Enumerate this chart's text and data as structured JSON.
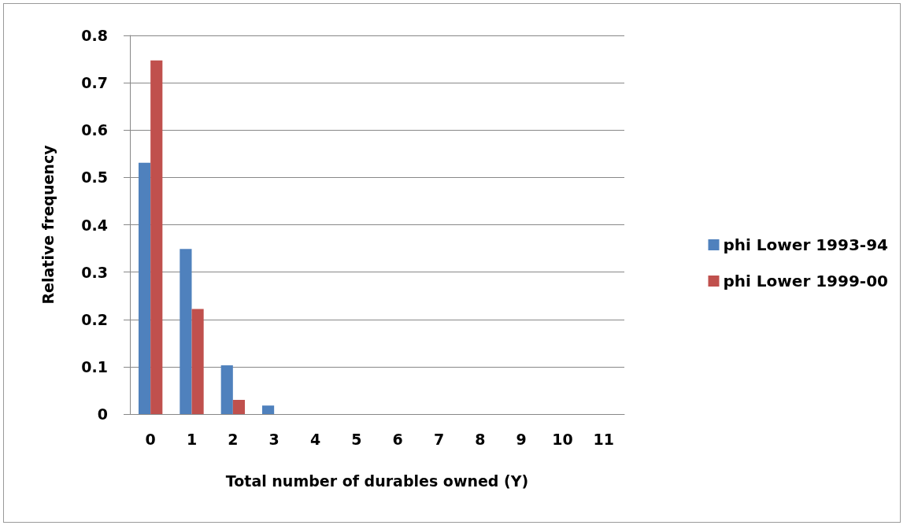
{
  "chart_data": {
    "type": "bar",
    "xlabel": "Total number of durables owned (Y)",
    "ylabel": "Relative frequency",
    "categories": [
      "0",
      "1",
      "2",
      "3",
      "4",
      "5",
      "6",
      "7",
      "8",
      "9",
      "10",
      "11"
    ],
    "series": [
      {
        "name": "phi Lower 1993-94",
        "color": "#4f81bd",
        "values": [
          0.531,
          0.349,
          0.103,
          0.018,
          0,
          0,
          0,
          0,
          0,
          0,
          0,
          0
        ]
      },
      {
        "name": "phi Lower 1999-00",
        "color": "#c0504d",
        "values": [
          0.747,
          0.222,
          0.03,
          0,
          0,
          0,
          0,
          0,
          0,
          0,
          0,
          0
        ]
      }
    ],
    "ylim": [
      0,
      0.8
    ],
    "yticks": [
      0,
      0.1,
      0.2,
      0.3,
      0.4,
      0.5,
      0.6,
      0.7,
      0.8
    ],
    "grid": "y",
    "legend": "right"
  }
}
